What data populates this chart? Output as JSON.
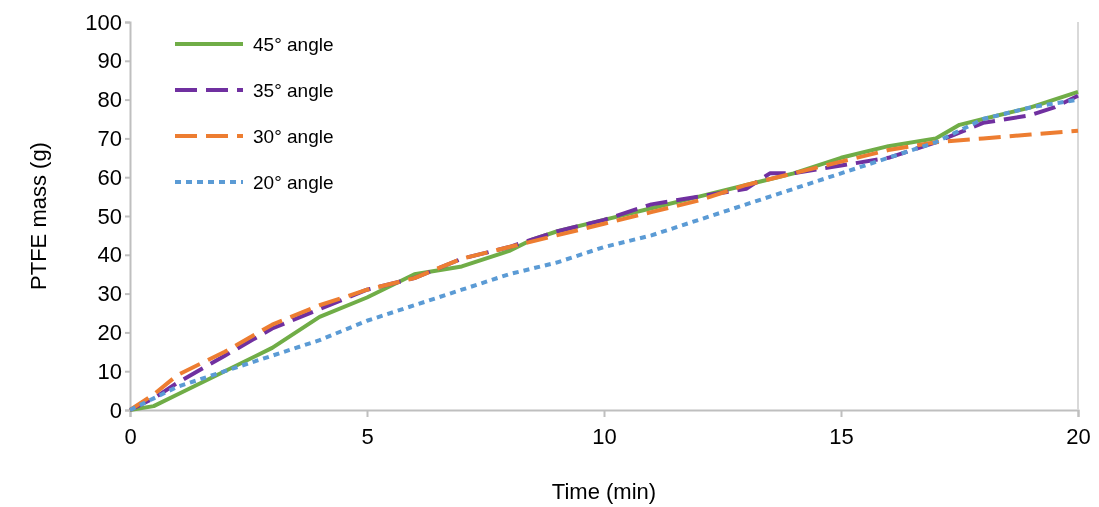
{
  "chart_data": {
    "type": "line",
    "xlabel": "Time (min)",
    "ylabel": "PTFE mass (g)",
    "xlim": [
      0,
      20
    ],
    "xticks": [
      0,
      5,
      10,
      15,
      20
    ],
    "ylim": [
      0,
      100
    ],
    "yticks": [
      0,
      10,
      20,
      30,
      40,
      50,
      60,
      70,
      80,
      90,
      100
    ],
    "grid": false,
    "legend": "top left",
    "series": [
      {
        "name": "45° angle",
        "color": "#70ad47",
        "line_style": "solid",
        "x": [
          0,
          0.5,
          1,
          2,
          3,
          4,
          5,
          6,
          7,
          8,
          8.5,
          9,
          10,
          11,
          12,
          13,
          14,
          15,
          16,
          17,
          17.5,
          18,
          19,
          20
        ],
        "values": [
          0,
          1,
          4,
          10,
          16,
          24,
          29,
          35,
          37,
          41,
          44,
          46,
          49,
          52,
          55,
          58,
          61,
          65,
          68,
          70,
          73.5,
          75,
          78,
          82
        ]
      },
      {
        "name": "35° angle",
        "color": "#7030a0",
        "line_style": "dashed",
        "x": [
          0,
          0.5,
          1,
          2,
          3,
          4,
          5,
          6,
          7,
          8,
          9,
          10,
          11,
          12,
          13,
          13.5,
          14,
          15,
          16,
          17,
          18,
          19,
          19.5,
          20
        ],
        "values": [
          0,
          3,
          7,
          14,
          21,
          26,
          31,
          34,
          39,
          42,
          46,
          49,
          53,
          55,
          57,
          61,
          61,
          63,
          65,
          69,
          74,
          76,
          78,
          81
        ]
      },
      {
        "name": "30° angle",
        "color": "#ed7d31",
        "line_style": "dashed",
        "x": [
          0,
          0.5,
          1,
          2,
          3,
          4,
          5,
          6,
          7,
          8,
          9,
          10,
          11,
          12,
          13,
          14,
          15,
          16,
          17,
          18,
          19,
          20
        ],
        "values": [
          0,
          4,
          9,
          15,
          22,
          27,
          31,
          34,
          39,
          42,
          45,
          48,
          51,
          54,
          58,
          61,
          64,
          67,
          69,
          70,
          71,
          72
        ]
      },
      {
        "name": "20° angle",
        "color": "#5b9bd5",
        "line_style": "dotted",
        "x": [
          0,
          0.5,
          1,
          2,
          3,
          4,
          5,
          6,
          7,
          8,
          9,
          10,
          11,
          12,
          13,
          14,
          15,
          16,
          17,
          17.5,
          18,
          19,
          20
        ],
        "values": [
          0,
          3,
          6,
          10,
          14,
          18,
          23,
          27,
          31,
          35,
          38,
          42,
          45,
          49,
          53,
          57,
          61,
          65,
          69,
          72,
          75,
          78,
          80
        ]
      }
    ]
  }
}
